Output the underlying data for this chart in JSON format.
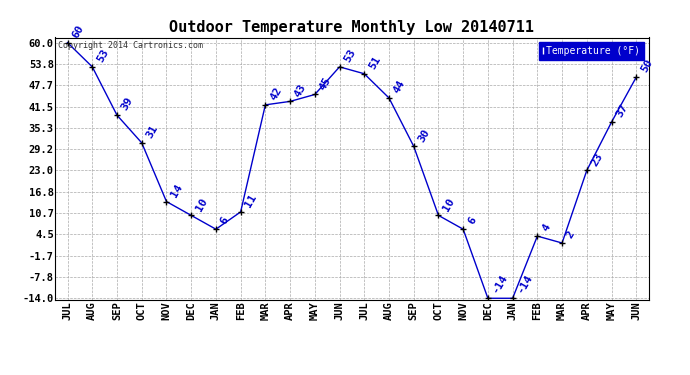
{
  "title": "Outdoor Temperature Monthly Low 20140711",
  "copyright": "Copyright 2014 Cartronics.com",
  "legend_label": "Temperature (°F)",
  "categories": [
    "JUL",
    "AUG",
    "SEP",
    "OCT",
    "NOV",
    "DEC",
    "JAN",
    "FEB",
    "MAR",
    "APR",
    "MAY",
    "JUN",
    "JUL",
    "AUG",
    "SEP",
    "OCT",
    "NOV",
    "DEC",
    "JAN",
    "FEB",
    "MAR",
    "APR",
    "MAY",
    "JUN"
  ],
  "values": [
    60,
    53,
    39,
    31,
    14,
    10,
    6,
    11,
    42,
    43,
    45,
    53,
    51,
    44,
    30,
    10,
    6,
    -14,
    -14,
    4,
    2,
    23,
    37,
    50
  ],
  "line_color": "#0000cc",
  "marker_color": "#000000",
  "bg_color": "#ffffff",
  "grid_color": "#aaaaaa",
  "yticks": [
    60.0,
    53.8,
    47.7,
    41.5,
    35.3,
    29.2,
    23.0,
    16.8,
    10.7,
    4.5,
    -1.7,
    -7.8,
    -14.0
  ],
  "ylim": [
    -14.0,
    60.0
  ],
  "title_fontsize": 11,
  "label_fontsize": 7.5,
  "annotation_fontsize": 8,
  "annotation_color": "#0000cc"
}
